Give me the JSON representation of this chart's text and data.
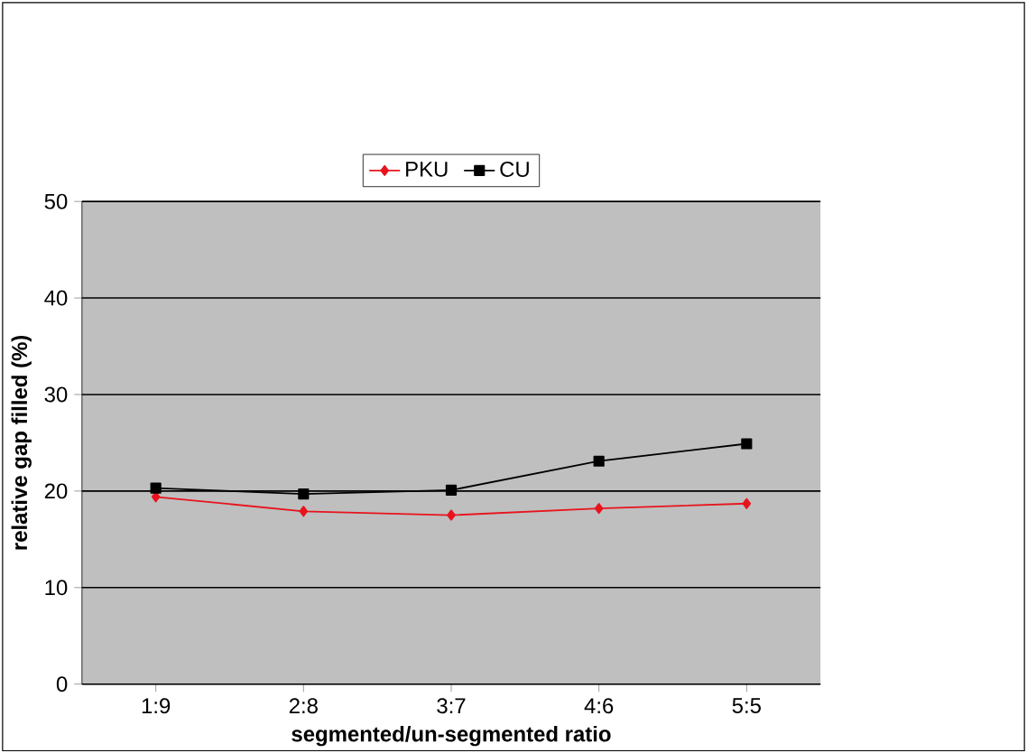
{
  "chart_data": {
    "type": "line",
    "xlabel": "segmented/un-segmented ratio",
    "ylabel": "relative gap filled (%)",
    "categories": [
      "1:9",
      "2:8",
      "3:7",
      "4:6",
      "5:5"
    ],
    "series": [
      {
        "name": "PKU",
        "color": "#e8141c",
        "marker": "diamond",
        "values": [
          19.4,
          17.9,
          17.5,
          18.2,
          18.7
        ]
      },
      {
        "name": "CU",
        "color": "#000000",
        "marker": "square",
        "values": [
          20.3,
          19.7,
          20.1,
          23.1,
          24.9
        ]
      }
    ],
    "ylim": [
      0,
      50
    ],
    "yticks": [
      0,
      10,
      20,
      30,
      40,
      50
    ],
    "grid": "y",
    "legend": "top",
    "line_style": "solid"
  }
}
